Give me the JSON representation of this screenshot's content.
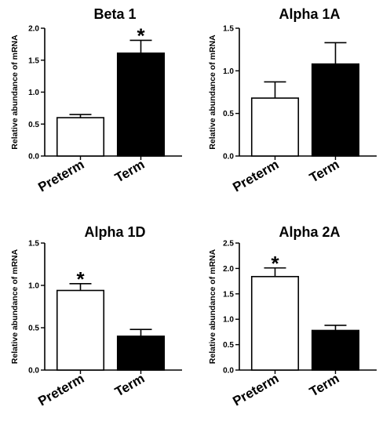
{
  "chart_data": [
    {
      "type": "bar",
      "title": "Beta 1",
      "ylabel": "Relative abundance of mRNA",
      "xlabel": "",
      "categories": [
        "Preterm",
        "Term"
      ],
      "values": [
        0.6,
        1.61
      ],
      "errors": [
        0.05,
        0.2
      ],
      "bar_colors": [
        "#ffffff",
        "#000000"
      ],
      "significance": [
        "",
        "*"
      ],
      "ylim": [
        0,
        2.0
      ],
      "yticks": [
        "0.0",
        "0.5",
        "1.0",
        "1.5",
        "2.0"
      ]
    },
    {
      "type": "bar",
      "title": "Alpha 1A",
      "ylabel": "Relative abundance of mRNA",
      "xlabel": "",
      "categories": [
        "Preterm",
        "Term"
      ],
      "values": [
        0.68,
        1.08
      ],
      "errors": [
        0.19,
        0.25
      ],
      "bar_colors": [
        "#ffffff",
        "#000000"
      ],
      "significance": [
        "",
        ""
      ],
      "ylim": [
        0,
        1.5
      ],
      "yticks": [
        "0.0",
        "0.5",
        "1.0",
        "1.5"
      ]
    },
    {
      "type": "bar",
      "title": "Alpha 1D",
      "ylabel": "Relative abundance of mRNA",
      "xlabel": "",
      "categories": [
        "Preterm",
        "Term"
      ],
      "values": [
        0.94,
        0.4
      ],
      "errors": [
        0.08,
        0.08
      ],
      "bar_colors": [
        "#ffffff",
        "#000000"
      ],
      "significance": [
        "*",
        ""
      ],
      "ylim": [
        0,
        1.5
      ],
      "yticks": [
        "0.0",
        "0.5",
        "1.0",
        "1.5"
      ]
    },
    {
      "type": "bar",
      "title": "Alpha 2A",
      "ylabel": "Relative abundance of mRNA",
      "xlabel": "",
      "categories": [
        "Preterm",
        "Term"
      ],
      "values": [
        1.84,
        0.78
      ],
      "errors": [
        0.17,
        0.1
      ],
      "bar_colors": [
        "#ffffff",
        "#000000"
      ],
      "significance": [
        "*",
        ""
      ],
      "ylim": [
        0,
        2.5
      ],
      "yticks": [
        "0.0",
        "0.5",
        "1.0",
        "1.5",
        "2.0",
        "2.5"
      ]
    }
  ]
}
